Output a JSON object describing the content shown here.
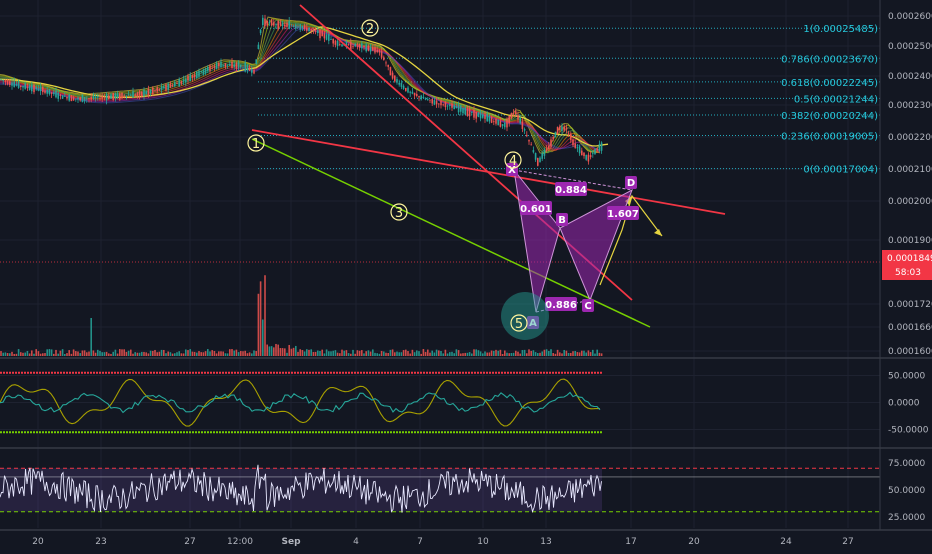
{
  "colors": {
    "background": "#131722",
    "grid": "#1e2230",
    "axis_text": "#b2b5be",
    "fib_line": "#26c6da",
    "fib_text": "#26c6da",
    "pattern_fill": "#9c27b0",
    "pattern_stroke": "#ce93d8",
    "pattern_label_bg": "#9c27b0",
    "red_trend": "#f23645",
    "green_trend": "#76d000",
    "yellow_line": "#e5d440",
    "wave_label": "#fff59d",
    "price_tag_bg": "#f23645",
    "volume_up": "#26a69a",
    "volume_down": "#ef5350"
  },
  "chart_data": [
    {
      "type": "candlestick",
      "panel": "price",
      "x_ticks": [
        "20",
        "23",
        "27",
        "12:00",
        "Sep",
        "4",
        "7",
        "10",
        "13",
        "17",
        "20",
        "24",
        "27"
      ],
      "y_ticks": [
        "0.00026000",
        "0.00025000",
        "0.00024000",
        "0.00023000",
        "0.00022000",
        "0.00021000",
        "0.00020000",
        "0.00019000",
        "0.00017200",
        "0.00016600",
        "0.00016000"
      ],
      "ylim": [
        0.00016,
        0.000262
      ],
      "current_price": "0.00018495",
      "countdown": "58:03",
      "fib_levels": [
        {
          "ratio": "1",
          "price": 0.00025485,
          "label": "1(0.00025485)"
        },
        {
          "ratio": "0.786",
          "price": 0.0002367,
          "label": "0.786(0.00023670)"
        },
        {
          "ratio": "0.618",
          "price": 0.00022245,
          "label": "0.618(0.00022245)"
        },
        {
          "ratio": "0.5",
          "price": 0.00021244,
          "label": "0.5(0.00021244)"
        },
        {
          "ratio": "0.382",
          "price": 0.00020244,
          "label": "0.382(0.00020244)"
        },
        {
          "ratio": "0.236",
          "price": 0.00019005,
          "label": "0.236(0.00019005)"
        },
        {
          "ratio": "0",
          "price": 0.00017004,
          "label": "0(0.00017004)"
        }
      ],
      "harmonic_pattern": {
        "points": [
          "X",
          "A",
          "B",
          "C",
          "D"
        ],
        "ratios": [
          "0.601",
          "0.886",
          "1.607",
          "0.884"
        ]
      },
      "wave_labels": [
        "1",
        "2",
        "3",
        "4",
        "5"
      ]
    },
    {
      "type": "line",
      "panel": "oscillator",
      "y_ticks": [
        "50.0000",
        "0.0000",
        "-50.0000"
      ],
      "ylim": [
        -75,
        75
      ],
      "upper_band": 55,
      "lower_band": -55
    },
    {
      "type": "line",
      "panel": "rsi",
      "y_ticks": [
        "75.0000",
        "50.0000",
        "25.0000"
      ],
      "ylim": [
        15,
        85
      ],
      "upper_band": 70,
      "lower_band": 30
    }
  ]
}
